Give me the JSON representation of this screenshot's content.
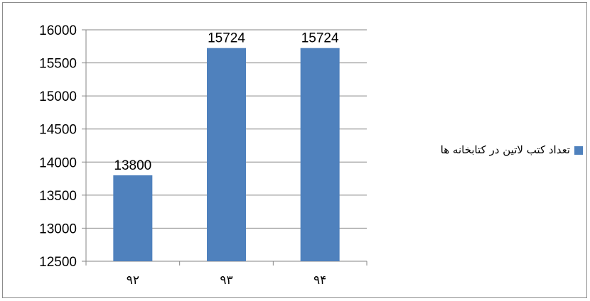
{
  "chart_data": {
    "type": "bar",
    "categories": [
      "۹۲",
      "۹۳",
      "۹۴"
    ],
    "series": [
      {
        "name": "تعداد کتب لاتین  در کتابخانه ها",
        "values": [
          13800,
          15724,
          15724
        ],
        "color": "#4f81bd"
      }
    ],
    "data_labels": [
      "13800",
      "15724",
      "15724"
    ],
    "ylim": [
      12500,
      16000
    ],
    "yticks": [
      12500,
      13000,
      13500,
      14000,
      14500,
      15000,
      15500,
      16000
    ],
    "grid": true,
    "legend_position": "right"
  }
}
